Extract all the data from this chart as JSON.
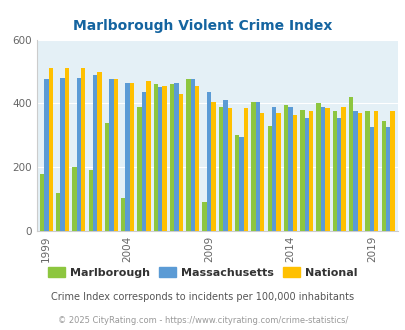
{
  "title": "Marlborough Violent Crime Index",
  "years": [
    1999,
    2000,
    2001,
    2002,
    2003,
    2004,
    2005,
    2006,
    2007,
    2008,
    2009,
    2010,
    2011,
    2012,
    2013,
    2014,
    2015,
    2016,
    2017,
    2018,
    2019,
    2020
  ],
  "marlborough": [
    180,
    120,
    200,
    190,
    340,
    105,
    390,
    460,
    460,
    475,
    90,
    390,
    300,
    405,
    330,
    395,
    380,
    400,
    375,
    420,
    375,
    345
  ],
  "massachusetts": [
    475,
    480,
    480,
    490,
    475,
    465,
    435,
    450,
    465,
    475,
    435,
    410,
    295,
    405,
    390,
    390,
    355,
    390,
    355,
    375,
    325,
    325
  ],
  "national": [
    510,
    510,
    510,
    500,
    475,
    465,
    470,
    455,
    430,
    455,
    405,
    385,
    385,
    370,
    370,
    365,
    375,
    385,
    390,
    370,
    375,
    375
  ],
  "marlborough_color": "#8dc63f",
  "massachusetts_color": "#5b9bd5",
  "national_color": "#ffc000",
  "bg_color": "#e4f0f6",
  "ylim": [
    0,
    600
  ],
  "yticks": [
    0,
    200,
    400,
    600
  ],
  "subtitle": "Crime Index corresponds to incidents per 100,000 inhabitants",
  "footnote": "© 2025 CityRating.com - https://www.cityrating.com/crime-statistics/",
  "title_color": "#1464a0",
  "subtitle_color": "#555555",
  "footnote_color": "#999999",
  "legend_label_color": "#333333",
  "figsize": [
    4.06,
    3.3
  ],
  "dpi": 100
}
